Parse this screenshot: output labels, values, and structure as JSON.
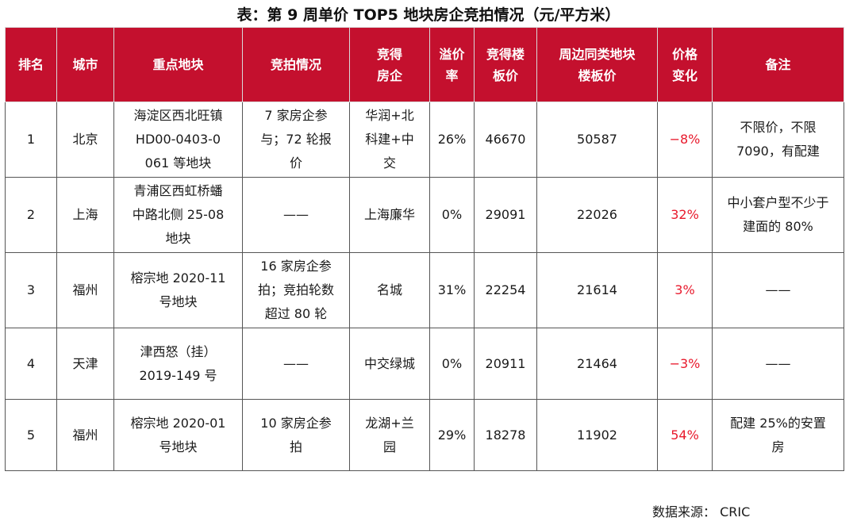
{
  "title": "表：第 9 周单价 TOP5 地块房企竞拍情况（元/平方米）",
  "headers": {
    "rank": "排名",
    "city": "城市",
    "plot": "重点地块",
    "auction": "竞拍情况",
    "winner": [
      "竞得",
      "房企"
    ],
    "premium": [
      "溢价",
      "率"
    ],
    "price": [
      "竞得楼",
      "板价"
    ],
    "nearby": [
      "周边同类地块",
      "楼板价"
    ],
    "change": [
      "价格",
      "变化"
    ],
    "note": "备注"
  },
  "rows": [
    {
      "rank": "1",
      "city": "北京",
      "plot": [
        "海淀区西北旺镇",
        "HD00-0403-0",
        "061 等地块"
      ],
      "auction": [
        "7 家房企参",
        "与；72 轮报",
        "价"
      ],
      "winner": [
        "华润+北",
        "科建+中",
        "交"
      ],
      "premium": "26%",
      "price": "46670",
      "nearby": "50587",
      "change": "−8%",
      "note": [
        "不限价，不限",
        "7090，有配建"
      ]
    },
    {
      "rank": "2",
      "city": "上海",
      "plot": [
        "青浦区西虹桥蟠",
        "中路北侧 25-08",
        "地块"
      ],
      "auction": [
        "——"
      ],
      "winner": [
        "上海廉华"
      ],
      "premium": "0%",
      "price": "29091",
      "nearby": "22026",
      "change": "32%",
      "note": [
        "中小套户型不少于",
        "建面的 80%"
      ]
    },
    {
      "rank": "3",
      "city": "福州",
      "plot": [
        "榕宗地 2020-11",
        "号地块"
      ],
      "auction": [
        "16 家房企参",
        "拍；竞拍轮数",
        "超过 80 轮"
      ],
      "winner": [
        "名城"
      ],
      "premium": "31%",
      "price": "22254",
      "nearby": "21614",
      "change": "3%",
      "note": [
        "——"
      ]
    },
    {
      "rank": "4",
      "city": "天津",
      "plot": [
        "津西怒（挂）",
        "2019-149 号"
      ],
      "auction": [
        "——"
      ],
      "winner": [
        "中交绿城"
      ],
      "premium": "0%",
      "price": "20911",
      "nearby": "21464",
      "change": "−3%",
      "note": [
        "——"
      ]
    },
    {
      "rank": "5",
      "city": "福州",
      "plot": [
        "榕宗地 2020-01",
        "号地块"
      ],
      "auction": [
        "10 家房企参",
        "拍"
      ],
      "winner": [
        "龙湖+兰",
        "园"
      ],
      "premium": "29%",
      "price": "18278",
      "nearby": "11902",
      "change": "54%",
      "note": [
        "配建 25%的安置",
        "房"
      ]
    }
  ],
  "source": "数据来源：  CRIC",
  "colors": {
    "header_bg": "#c4102e",
    "change_text": "#e8192c"
  }
}
